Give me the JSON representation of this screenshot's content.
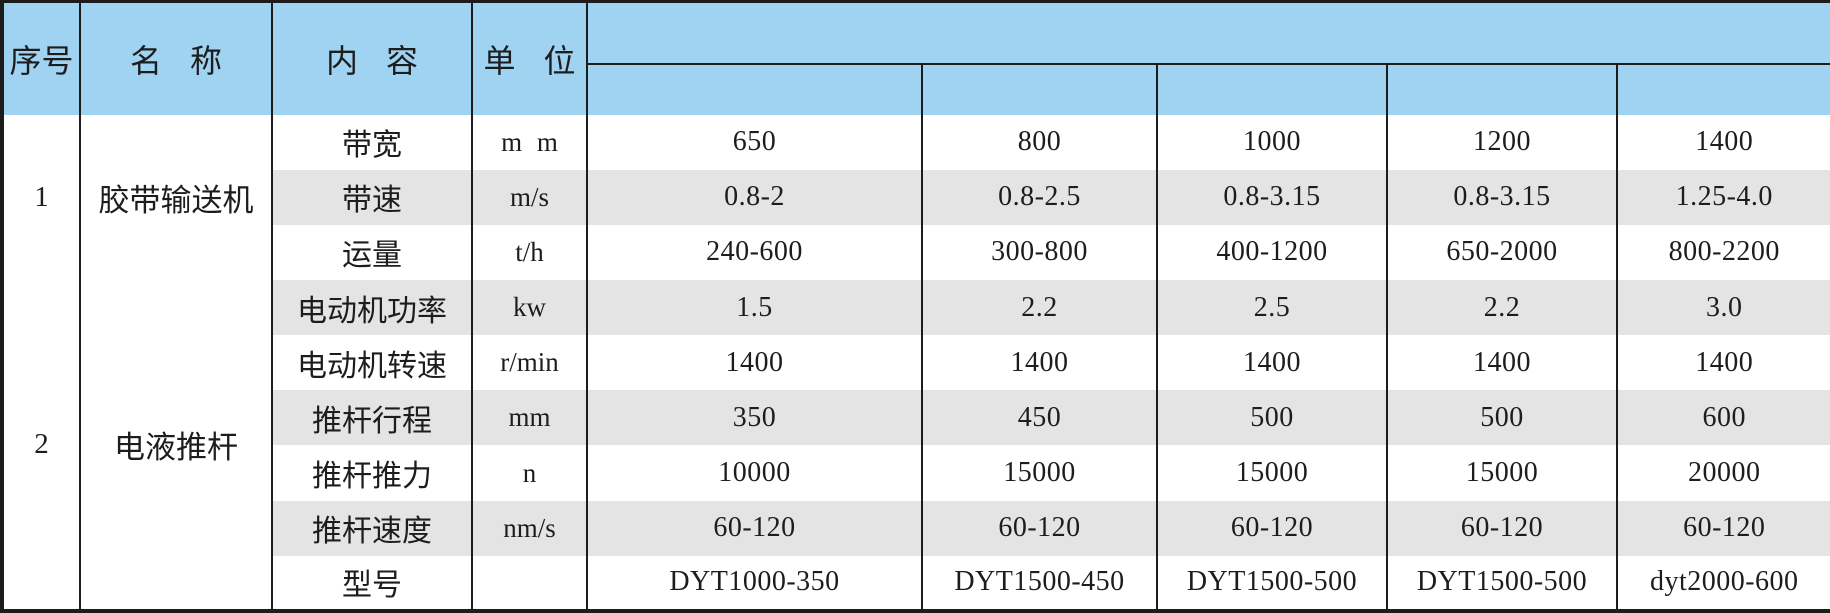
{
  "table": {
    "title_row": {
      "seq": "序号",
      "name": "名 称",
      "content": "内 容",
      "unit": "单 位"
    },
    "model_header": {
      "merged_label": "",
      "sub_labels": [
        "",
        "",
        "",
        "",
        ""
      ]
    },
    "groups": [
      {
        "index": "1",
        "name": "胶带输送机",
        "rows": [
          {
            "content": "带宽",
            "unit": "m m",
            "values": [
              "650",
              "800",
              "1000",
              "1200",
              "1400"
            ]
          },
          {
            "content": "带速",
            "unit": "m/s",
            "values": [
              "0.8-2",
              "0.8-2.5",
              "0.8-3.15",
              "0.8-3.15",
              "1.25-4.0"
            ]
          },
          {
            "content": "运量",
            "unit": "t/h",
            "values": [
              "240-600",
              "300-800",
              "400-1200",
              "650-2000",
              "800-2200"
            ]
          }
        ]
      },
      {
        "index": "2",
        "name": "电液推杆",
        "rows": [
          {
            "content": "电动机功率",
            "unit": "kw",
            "values": [
              "1.5",
              "2.2",
              "2.5",
              "2.2",
              "3.0"
            ]
          },
          {
            "content": "电动机转速",
            "unit": "r/min",
            "values": [
              "1400",
              "1400",
              "1400",
              "1400",
              "1400"
            ]
          },
          {
            "content": "推杆行程",
            "unit": "mm",
            "values": [
              "350",
              "450",
              "500",
              "500",
              "600"
            ]
          },
          {
            "content": "推杆推力",
            "unit": "n",
            "values": [
              "10000",
              "15000",
              "15000",
              "15000",
              "20000"
            ]
          },
          {
            "content": "推杆速度",
            "unit": "nm/s",
            "values": [
              "60-120",
              "60-120",
              "60-120",
              "60-120",
              "60-120"
            ]
          },
          {
            "content": "型号",
            "unit": "",
            "values": [
              "DYT1000-350",
              "DYT1500-450",
              "DYT1500-500",
              "DYT1500-500",
              "dyt2000-600"
            ]
          }
        ]
      }
    ],
    "colors": {
      "header_bg": "#a0d3f1",
      "stripe_bg": "#e4e4e4",
      "border": "#1c1c1c",
      "text": "#1d1d1d"
    }
  }
}
